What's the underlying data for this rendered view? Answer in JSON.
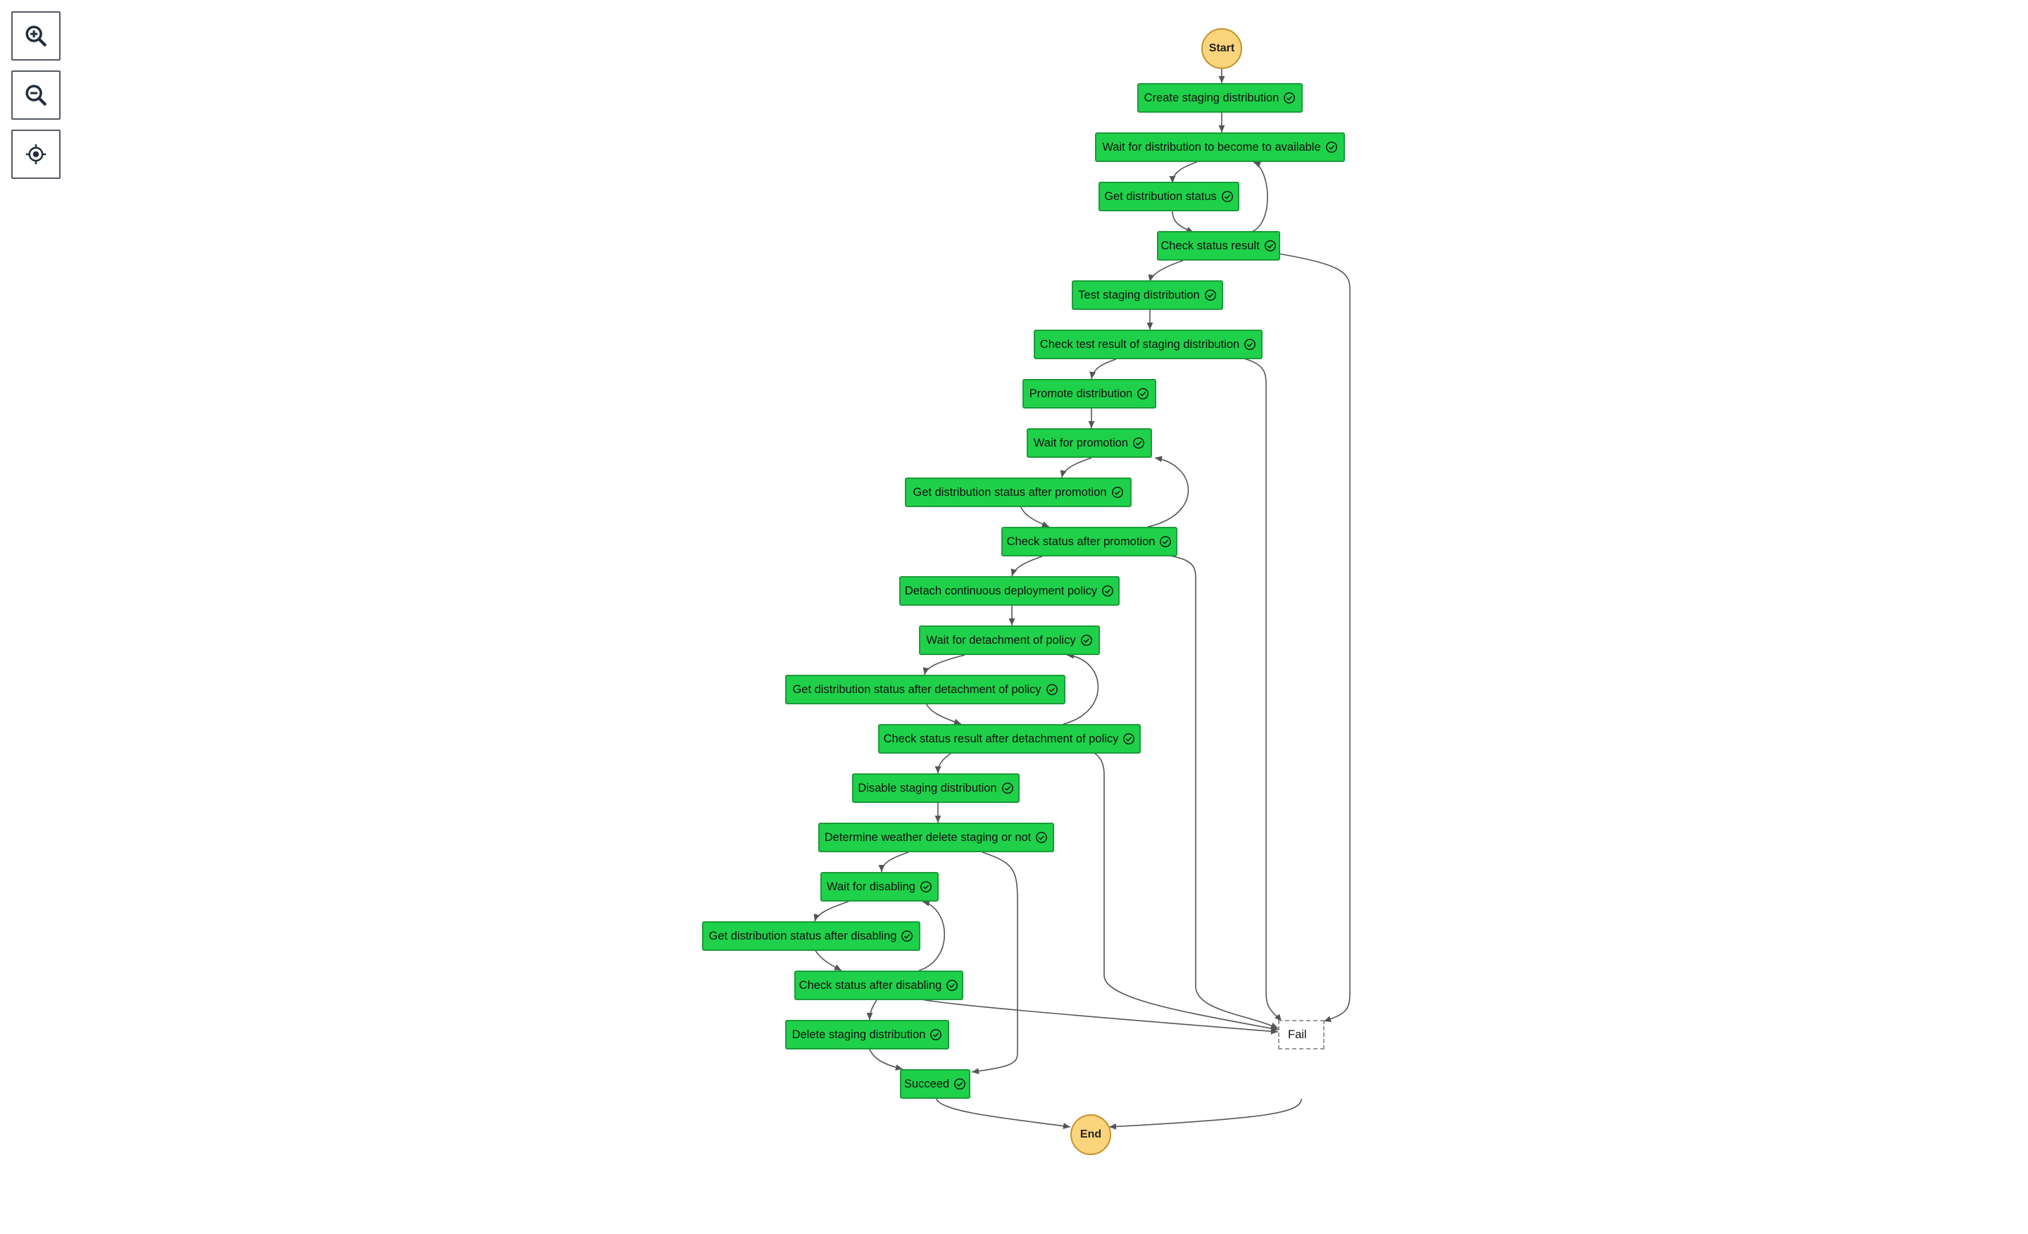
{
  "toolbar": {
    "zoom_in_icon": "zoom-in-icon",
    "zoom_out_icon": "zoom-out-icon",
    "center_icon": "crosshair-icon"
  },
  "colors": {
    "node_fill": "#1fd14a",
    "node_border": "#1a9b3a",
    "terminal_fill": "#fbd47b",
    "edge": "#555555"
  },
  "graph": {
    "start": "Start",
    "end": "End",
    "fail": "Fail",
    "status_icon": "check-circle-icon",
    "states": [
      "Create staging distribution",
      "Wait for distribution to become to available",
      "Get distribution status",
      "Check status result",
      "Test staging distribution",
      "Check test result of staging distribution",
      "Promote distribution",
      "Wait for promotion",
      "Get distribution status after promotion",
      "Check status after promotion",
      "Detach continuous deployment policy",
      "Wait for detachment of policy",
      "Get distribution status after detachment of policy",
      "Check status result after detachment of policy",
      "Disable staging distribution",
      "Determine weather delete staging or not",
      "Wait for disabling",
      "Get distribution status after disabling",
      "Check status after disabling",
      "Delete staging distribution",
      "Succeed"
    ]
  }
}
